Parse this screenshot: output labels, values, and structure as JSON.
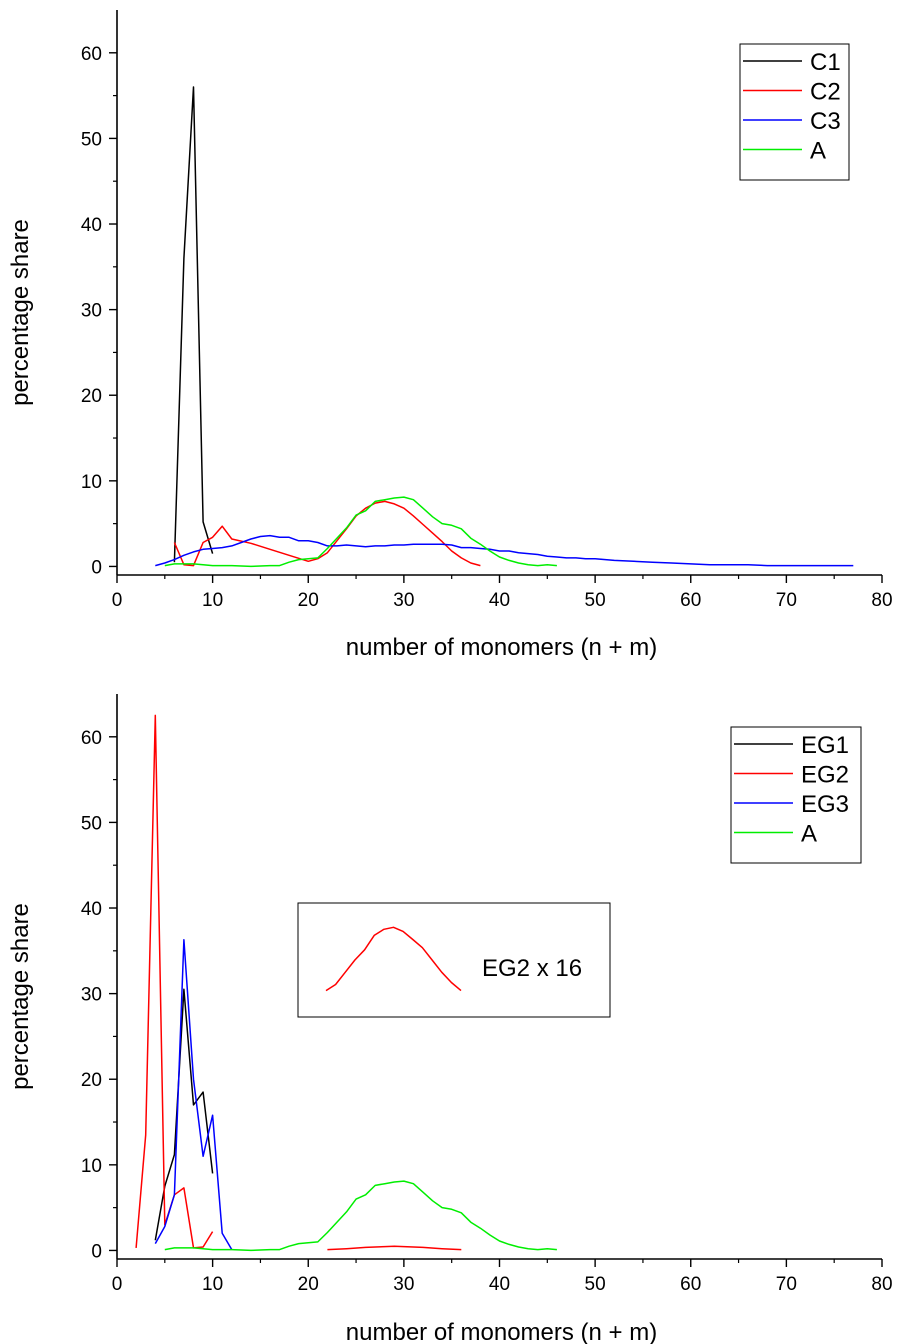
{
  "chart_data": [
    {
      "type": "line",
      "title": "",
      "xlabel": "number of monomers (n + m)",
      "ylabel": "percentage share",
      "xlim": [
        0,
        80
      ],
      "ylim": [
        -1,
        65
      ],
      "xticks": [
        "0",
        "10",
        "20",
        "30",
        "40",
        "50",
        "60",
        "70",
        "80"
      ],
      "yticks": [
        "0",
        "10",
        "20",
        "30",
        "40",
        "50",
        "60"
      ],
      "legend_position": "top-right",
      "series": [
        {
          "name": "C1",
          "color": "#000000",
          "x": [
            6,
            7,
            8,
            9,
            10
          ],
          "y": [
            0.5,
            36,
            56,
            5.2,
            1.5
          ]
        },
        {
          "name": "C2",
          "color": "#ff0000",
          "x": [
            6,
            7,
            8,
            9,
            10,
            11,
            12,
            14,
            16,
            18,
            20,
            21,
            22,
            23,
            24,
            25,
            26,
            27,
            28,
            29,
            30,
            31,
            32,
            33,
            34,
            35,
            36,
            37,
            38
          ],
          "y": [
            2.8,
            0.2,
            0.1,
            2.8,
            3.4,
            4.7,
            3.2,
            2.7,
            2.0,
            1.3,
            0.6,
            0.9,
            1.6,
            3.0,
            4.4,
            5.9,
            6.8,
            7.4,
            7.6,
            7.3,
            6.8,
            5.9,
            4.9,
            3.9,
            2.9,
            1.8,
            1.0,
            0.4,
            0.1
          ]
        },
        {
          "name": "C3",
          "color": "#0000ff",
          "x": [
            4,
            5,
            6,
            7,
            8,
            9,
            10,
            11,
            12,
            13,
            14,
            15,
            16,
            17,
            18,
            19,
            20,
            21,
            22,
            23,
            24,
            25,
            26,
            27,
            28,
            29,
            30,
            31,
            32,
            33,
            34,
            35,
            36,
            37,
            38,
            39,
            40,
            41,
            42,
            43,
            44,
            45,
            46,
            47,
            48,
            49,
            50,
            52,
            54,
            56,
            58,
            60,
            62,
            64,
            66,
            68,
            70,
            72,
            74,
            76,
            77
          ],
          "y": [
            0.1,
            0.4,
            0.8,
            1.3,
            1.7,
            2.0,
            2.1,
            2.2,
            2.4,
            2.8,
            3.2,
            3.5,
            3.6,
            3.4,
            3.4,
            3.0,
            3.0,
            2.8,
            2.4,
            2.4,
            2.5,
            2.4,
            2.3,
            2.4,
            2.4,
            2.5,
            2.5,
            2.6,
            2.6,
            2.6,
            2.6,
            2.5,
            2.2,
            2.2,
            2.1,
            2.0,
            1.8,
            1.8,
            1.6,
            1.5,
            1.4,
            1.2,
            1.1,
            1.0,
            1.0,
            0.9,
            0.9,
            0.7,
            0.6,
            0.5,
            0.4,
            0.3,
            0.2,
            0.2,
            0.2,
            0.1,
            0.1,
            0.1,
            0.1,
            0.1,
            0.1
          ]
        },
        {
          "name": "A",
          "color": "#00ee00",
          "x": [
            5,
            6,
            7,
            8,
            9,
            10,
            12,
            14,
            16,
            17,
            18,
            19,
            20,
            21,
            22,
            23,
            24,
            25,
            26,
            27,
            28,
            29,
            30,
            31,
            32,
            33,
            34,
            35,
            36,
            37,
            38,
            39,
            40,
            41,
            42,
            43,
            44,
            45,
            46
          ],
          "y": [
            0.1,
            0.3,
            0.3,
            0.3,
            0.2,
            0.1,
            0.1,
            0.0,
            0.1,
            0.1,
            0.5,
            0.8,
            0.9,
            1.0,
            2.1,
            3.3,
            4.5,
            6.0,
            6.5,
            7.6,
            7.8,
            8.0,
            8.1,
            7.8,
            6.8,
            5.8,
            5.0,
            4.8,
            4.4,
            3.3,
            2.6,
            1.8,
            1.1,
            0.7,
            0.4,
            0.2,
            0.1,
            0.2,
            0.1
          ]
        }
      ]
    },
    {
      "type": "line",
      "title": "",
      "xlabel": "number of monomers (n + m)",
      "ylabel": "percentage share",
      "xlim": [
        0,
        80
      ],
      "ylim": [
        -1,
        65
      ],
      "xticks": [
        "0",
        "10",
        "20",
        "30",
        "40",
        "50",
        "60",
        "70",
        "80"
      ],
      "yticks": [
        "0",
        "10",
        "20",
        "30",
        "40",
        "50",
        "60"
      ],
      "legend_position": "top-right",
      "series": [
        {
          "name": "EG1",
          "color": "#000000",
          "x": [
            4,
            5,
            6,
            7,
            8,
            9,
            10
          ],
          "y": [
            1.2,
            7.5,
            11.2,
            30.5,
            17.0,
            18.5,
            9.0
          ]
        },
        {
          "name": "EG2",
          "color": "#ff0000",
          "x": [
            2,
            3,
            4,
            5,
            6,
            7,
            8,
            9,
            10
          ],
          "y": [
            0.3,
            13.5,
            62.5,
            3.0,
            6.5,
            7.3,
            0.3,
            0.4,
            2.2
          ]
        },
        {
          "name": "EG3",
          "color": "#0000ff",
          "x": [
            4,
            5,
            6,
            7,
            8,
            9,
            10,
            11,
            12
          ],
          "y": [
            0.8,
            2.8,
            6.5,
            36.3,
            20.0,
            11.0,
            15.8,
            2.0,
            0.1
          ]
        },
        {
          "name": "A",
          "color": "#00ee00",
          "x": [
            5,
            6,
            7,
            8,
            9,
            10,
            12,
            14,
            16,
            17,
            18,
            19,
            20,
            21,
            22,
            23,
            24,
            25,
            26,
            27,
            28,
            29,
            30,
            31,
            32,
            33,
            34,
            35,
            36,
            37,
            38,
            39,
            40,
            41,
            42,
            43,
            44,
            45,
            46
          ],
          "y": [
            0.1,
            0.3,
            0.3,
            0.3,
            0.2,
            0.1,
            0.1,
            0.0,
            0.1,
            0.1,
            0.5,
            0.8,
            0.9,
            1.0,
            2.1,
            3.3,
            4.5,
            6.0,
            6.5,
            7.6,
            7.8,
            8.0,
            8.1,
            7.8,
            6.8,
            5.8,
            5.0,
            4.8,
            4.4,
            3.3,
            2.6,
            1.8,
            1.1,
            0.7,
            0.4,
            0.2,
            0.1,
            0.2,
            0.1
          ]
        },
        {
          "name": "",
          "color": "#ff0000",
          "x": [
            22,
            24,
            26,
            28,
            29,
            30,
            32,
            34,
            36
          ],
          "y": [
            0.1,
            0.2,
            0.35,
            0.45,
            0.5,
            0.45,
            0.35,
            0.2,
            0.1
          ]
        }
      ],
      "inset": {
        "label": "EG2 x 16",
        "color": "#ff0000",
        "x": [
          22,
          23,
          24,
          25,
          26,
          27,
          28,
          29,
          30,
          31,
          32,
          33,
          34,
          35,
          36
        ],
        "y": [
          1.6,
          2.2,
          3.4,
          4.6,
          5.6,
          7.0,
          7.6,
          7.8,
          7.4,
          6.6,
          5.8,
          4.6,
          3.4,
          2.4,
          1.6
        ],
        "ylim": [
          0,
          9
        ]
      }
    }
  ]
}
